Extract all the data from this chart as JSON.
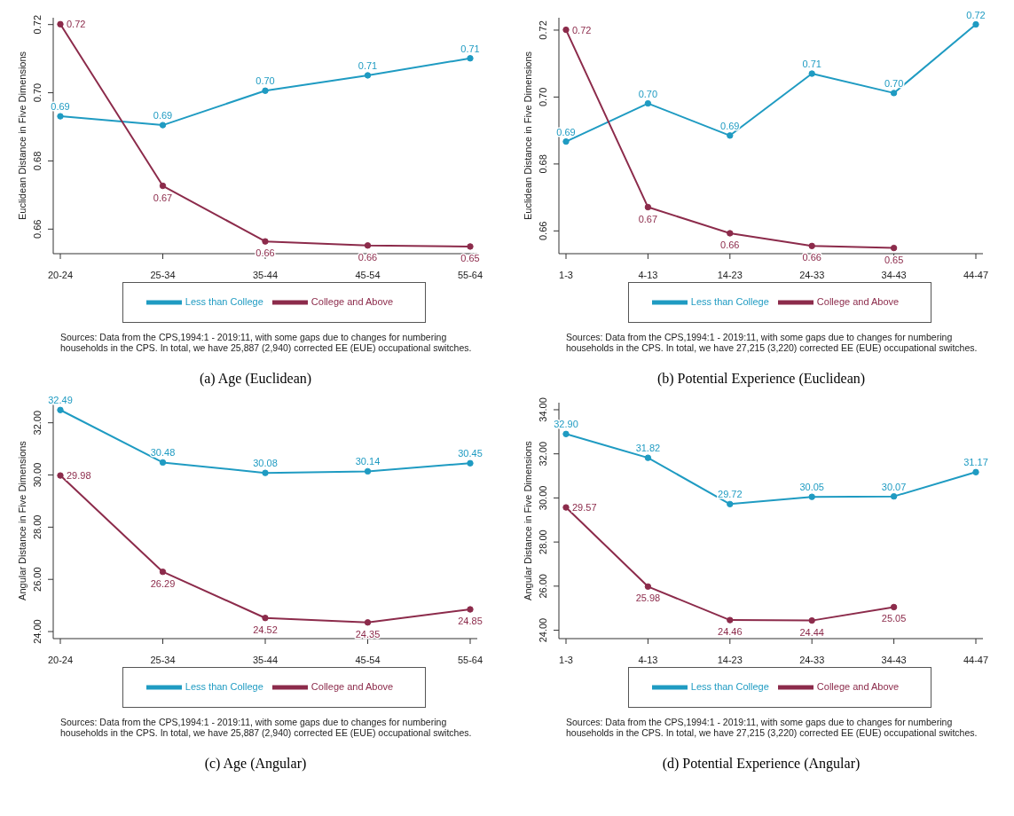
{
  "chart_data": [
    {
      "type": "line",
      "title": "(a)  Age (Euclidean)",
      "ylabel": "Euclidean Distance in Five Dimensions",
      "categories": [
        "20-24",
        "25-34",
        "35-44",
        "45-54",
        "55-64"
      ],
      "series": [
        {
          "name": "Less than College",
          "color": "#1f9bc2",
          "values": [
            0.6931,
            0.6905,
            0.7006,
            0.7051,
            0.7101
          ],
          "value_labels": [
            "0.69",
            "0.69",
            "0.70",
            "0.71",
            "0.71"
          ]
        },
        {
          "name": "College and Above",
          "color": "#8c2b4b",
          "values": [
            0.7201,
            0.6727,
            0.6564,
            0.6552,
            0.6549
          ],
          "value_labels": [
            "0.72",
            "0.67",
            "0.66",
            "0.66",
            "0.65"
          ]
        }
      ],
      "ylim": [
        0.6528,
        0.722
      ],
      "yticks": [
        {
          "value": 0.66,
          "label": "0.66"
        },
        {
          "value": 0.68,
          "label": "0.68"
        },
        {
          "value": 0.7,
          "label": "0.70"
        },
        {
          "value": 0.72,
          "label": "0.72"
        }
      ],
      "marker": "circle",
      "legend": "bottom",
      "annotations": [
        "Sources: Data from the CPS,1994:1 - 2019:11, with some gaps due to changes for numbering households in the CPS. In total, we have 25,887 (2,940) corrected EE (EUE) occupational switches."
      ]
    },
    {
      "type": "line",
      "title": "(b)  Potential Experience (Euclidean)",
      "ylabel": "Euclidean Distance in Five Dimensions",
      "categories": [
        "1-3",
        "4-13",
        "14-23",
        "24-33",
        "34-43",
        "44-47"
      ],
      "series": [
        {
          "name": "Less than College",
          "color": "#1f9bc2",
          "values": [
            0.6867,
            0.6981,
            0.6885,
            0.707,
            0.7012,
            0.7217
          ],
          "value_labels": [
            "0.69",
            "0.70",
            "0.69",
            "0.71",
            "0.70",
            "0.72"
          ]
        },
        {
          "name": "College and Above",
          "color": "#8c2b4b",
          "values": [
            0.7201,
            0.6671,
            0.6593,
            0.6555,
            0.6549,
            null
          ],
          "value_labels": [
            "0.72",
            "0.67",
            "0.66",
            "0.66",
            "0.65",
            null
          ]
        }
      ],
      "ylim": [
        0.6532,
        0.7237
      ],
      "yticks": [
        {
          "value": 0.66,
          "label": "0.66"
        },
        {
          "value": 0.68,
          "label": "0.68"
        },
        {
          "value": 0.7,
          "label": "0.70"
        },
        {
          "value": 0.72,
          "label": "0.72"
        }
      ],
      "marker": "circle",
      "legend": "bottom",
      "annotations": [
        "Sources: Data from the CPS,1994:1 - 2019:11, with some gaps due to changes for numbering households in the CPS. In total, we have 27,215 (3,220) corrected EE (EUE) occupational switches."
      ]
    },
    {
      "type": "line",
      "title": "(c)  Age (Angular)",
      "ylabel": "Angular Distance in Five Dimensions",
      "categories": [
        "20-24",
        "25-34",
        "35-44",
        "45-54",
        "55-64"
      ],
      "series": [
        {
          "name": "Less than College",
          "color": "#1f9bc2",
          "values": [
            32.49,
            30.48,
            30.08,
            30.14,
            30.45
          ],
          "value_labels": [
            "32.49",
            "30.48",
            "30.08",
            "30.14",
            "30.45"
          ]
        },
        {
          "name": "College and Above",
          "color": "#8c2b4b",
          "values": [
            29.98,
            26.29,
            24.52,
            24.35,
            24.85
          ],
          "value_labels": [
            "29.98",
            "26.29",
            "24.52",
            "24.35",
            "24.85"
          ]
        }
      ],
      "ylim": [
        23.73,
        32.77
      ],
      "yticks": [
        {
          "value": 24,
          "label": "24.00"
        },
        {
          "value": 26,
          "label": "26.00"
        },
        {
          "value": 28,
          "label": "28.00"
        },
        {
          "value": 30,
          "label": "30.00"
        },
        {
          "value": 32,
          "label": "32.00"
        }
      ],
      "marker": "circle",
      "legend": "bottom",
      "annotations": [
        "Sources: Data from the CPS,1994:1 - 2019:11, with some gaps due to changes for numbering households in the CPS. In total, we have 25,887 (2,940) corrected EE (EUE) occupational switches."
      ]
    },
    {
      "type": "line",
      "title": "(d)  Potential Experience (Angular)",
      "ylabel": "Angular Distance in Five Dimensions",
      "categories": [
        "1-3",
        "4-13",
        "14-23",
        "24-33",
        "34-43",
        "44-47"
      ],
      "series": [
        {
          "name": "Less than College",
          "color": "#1f9bc2",
          "values": [
            32.9,
            31.82,
            29.72,
            30.05,
            30.07,
            31.17
          ],
          "value_labels": [
            "32.90",
            "31.82",
            "29.72",
            "30.05",
            "30.07",
            "31.17"
          ]
        },
        {
          "name": "College and Above",
          "color": "#8c2b4b",
          "values": [
            29.57,
            25.98,
            24.46,
            24.44,
            25.05,
            null
          ],
          "value_labels": [
            "29.57",
            "25.98",
            "24.46",
            "24.44",
            "25.05",
            null
          ]
        }
      ],
      "ylim": [
        23.62,
        34.32
      ],
      "yticks": [
        {
          "value": 24,
          "label": "24.00"
        },
        {
          "value": 26,
          "label": "26.00"
        },
        {
          "value": 28,
          "label": "28.00"
        },
        {
          "value": 30,
          "label": "30.00"
        },
        {
          "value": 32,
          "label": "32.00"
        },
        {
          "value": 34,
          "label": "34.00"
        }
      ],
      "marker": "circle",
      "legend": "bottom",
      "annotations": [
        "Sources: Data from the CPS,1994:1 - 2019:11, with some gaps due to changes for numbering households in the CPS. In total, we have 27,215 (3,220) corrected EE (EUE) occupational switches."
      ]
    }
  ]
}
